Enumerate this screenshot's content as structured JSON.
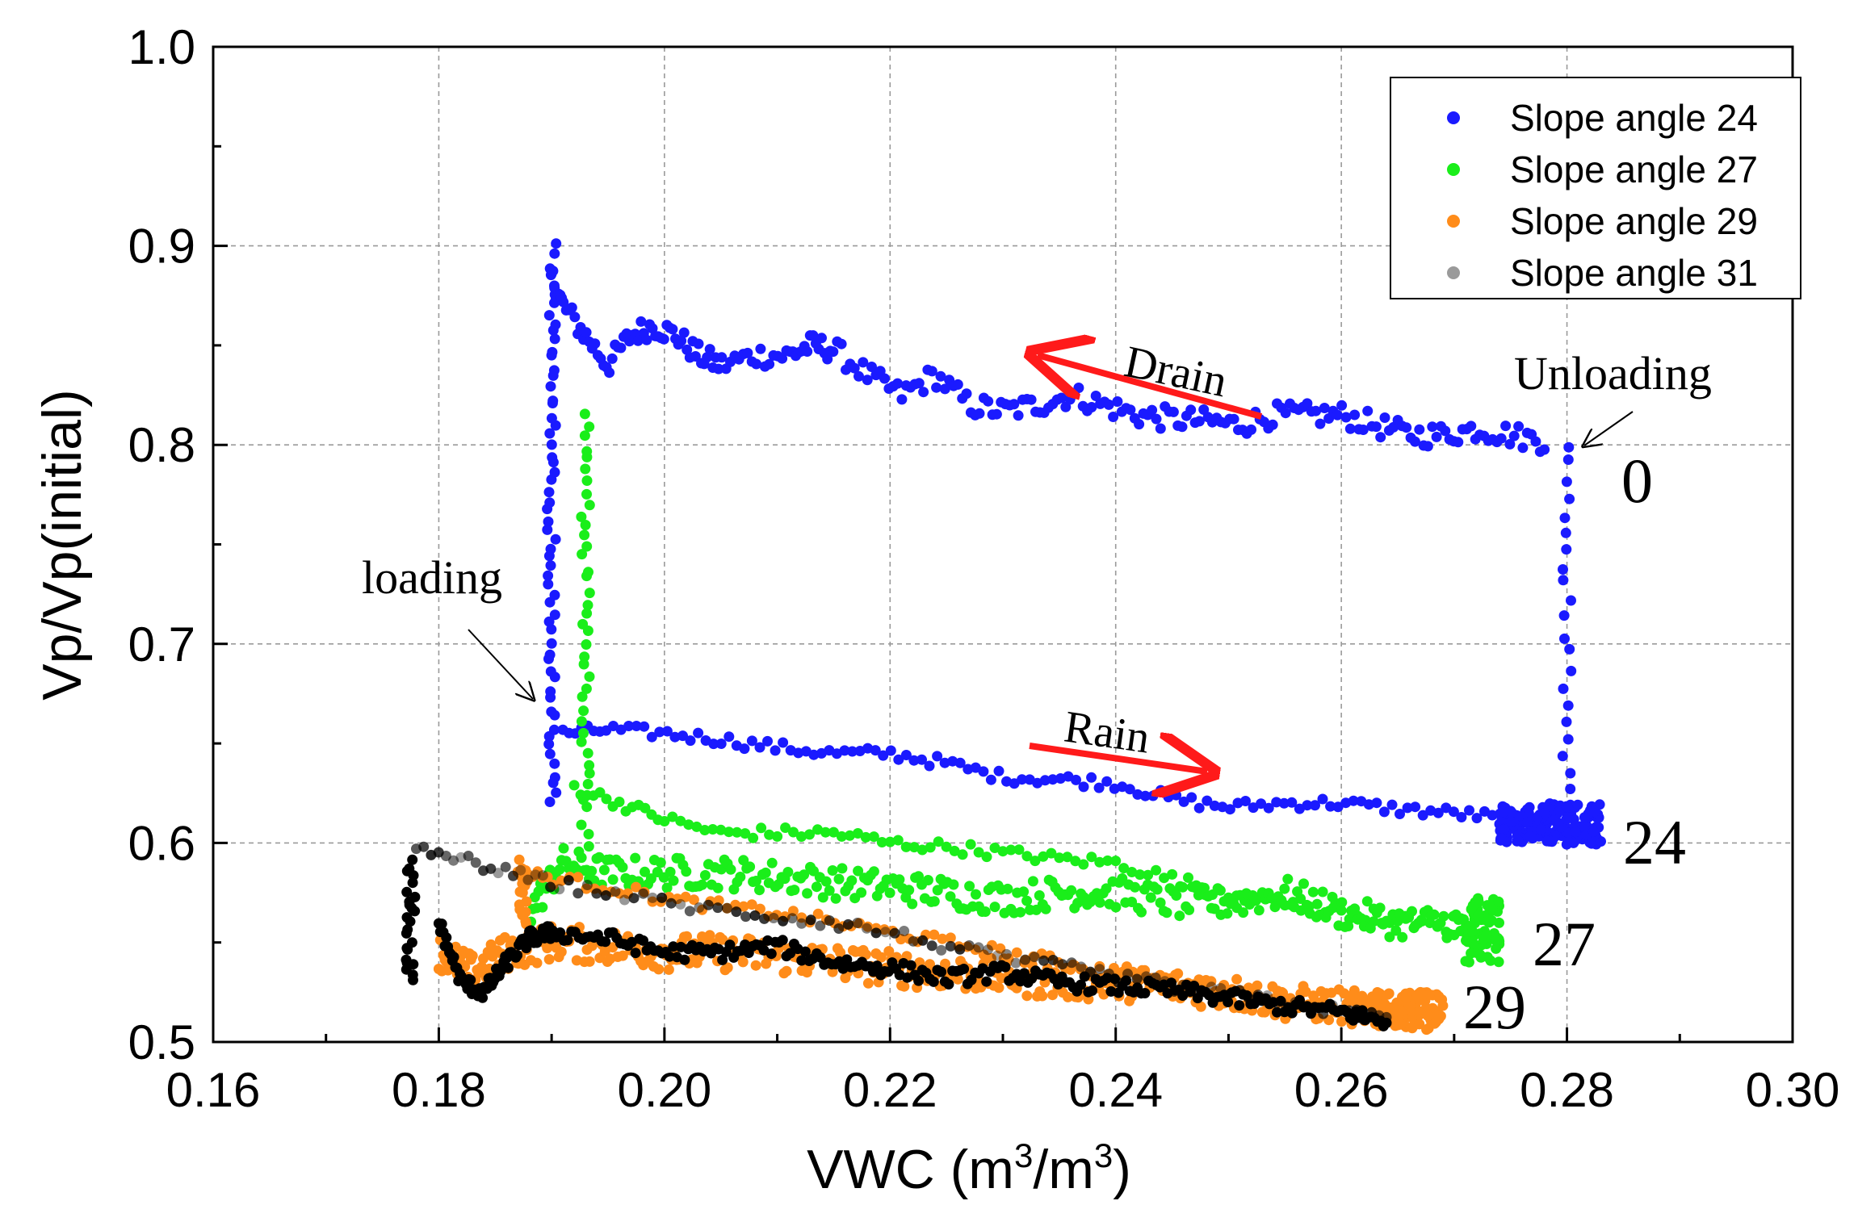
{
  "chart_data": {
    "type": "scatter",
    "title": "",
    "xlabel": "VWC (m",
    "xlabel_sup1": "3",
    "xlabel_mid": "/m",
    "xlabel_sup2": "3",
    "xlabel_end": ")",
    "ylabel": "Vp/Vp(initial)",
    "xlim": [
      0.16,
      0.3
    ],
    "ylim": [
      0.5,
      1.0
    ],
    "x_ticks": [
      "0.16",
      "0.18",
      "0.20",
      "0.22",
      "0.24",
      "0.26",
      "0.28",
      "0.30"
    ],
    "y_ticks": [
      "0.5",
      "0.6",
      "0.7",
      "0.8",
      "0.9",
      "1.0"
    ],
    "grid": true,
    "legend_position": "top-right",
    "series": [
      {
        "name": "Slope angle 24",
        "color": "#1a1aff",
        "segments": [
          {
            "role": "loading",
            "x": [
              0.19,
              0.19
            ],
            "y": [
              0.62,
              0.9
            ],
            "n": 60
          },
          {
            "role": "drain",
            "x": [
              0.19,
              0.191,
              0.193,
              0.195,
              0.197,
              0.199,
              0.201,
              0.203,
              0.205,
              0.208,
              0.211,
              0.213,
              0.215,
              0.218,
              0.221,
              0.224,
              0.227,
              0.23,
              0.233,
              0.236,
              0.239,
              0.242,
              0.245,
              0.248,
              0.251,
              0.254,
              0.257,
              0.26,
              0.263,
              0.266,
              0.269,
              0.272,
              0.275,
              0.278
            ],
            "y": [
              0.885,
              0.87,
              0.855,
              0.84,
              0.855,
              0.86,
              0.855,
              0.845,
              0.84,
              0.845,
              0.845,
              0.85,
              0.848,
              0.835,
              0.825,
              0.835,
              0.82,
              0.817,
              0.82,
              0.825,
              0.82,
              0.815,
              0.813,
              0.812,
              0.81,
              0.815,
              0.815,
              0.815,
              0.81,
              0.805,
              0.805,
              0.808,
              0.805,
              0.802
            ],
            "jitter": 0.006,
            "n": 260
          },
          {
            "role": "unloading",
            "x": [
              0.28,
              0.28
            ],
            "y": [
              0.8,
              0.6
            ],
            "n": 24
          },
          {
            "role": "rain",
            "x": [
              0.191,
              0.195,
              0.2,
              0.205,
              0.21,
              0.215,
              0.22,
              0.225,
              0.23,
              0.235,
              0.24,
              0.245,
              0.25,
              0.255,
              0.26,
              0.265,
              0.27,
              0.275,
              0.28,
              0.283
            ],
            "y": [
              0.655,
              0.657,
              0.655,
              0.652,
              0.648,
              0.645,
              0.645,
              0.64,
              0.633,
              0.632,
              0.63,
              0.622,
              0.618,
              0.62,
              0.62,
              0.617,
              0.615,
              0.612,
              0.605,
              0.6
            ],
            "jitter": 0.003,
            "n": 140
          },
          {
            "role": "tail",
            "x": [
              0.274,
              0.283
            ],
            "y": [
              0.6,
              0.62
            ],
            "jitter": 0.012,
            "n": 160
          }
        ]
      },
      {
        "name": "Slope angle 27",
        "color": "#1aee1a",
        "segments": [
          {
            "role": "loading",
            "x": [
              0.193,
              0.193
            ],
            "y": [
              0.6,
              0.815
            ],
            "n": 40
          },
          {
            "role": "upper",
            "x": [
              0.192,
              0.196,
              0.2,
              0.205,
              0.21,
              0.215,
              0.22,
              0.225,
              0.23,
              0.235,
              0.24,
              0.245,
              0.25,
              0.255,
              0.26,
              0.265,
              0.27,
              0.274
            ],
            "y": [
              0.628,
              0.62,
              0.612,
              0.605,
              0.605,
              0.605,
              0.6,
              0.598,
              0.595,
              0.592,
              0.59,
              0.582,
              0.575,
              0.57,
              0.565,
              0.56,
              0.555,
              0.55
            ],
            "jitter": 0.003,
            "n": 120
          },
          {
            "role": "lower",
            "x": [
              0.188,
              0.191,
              0.195,
              0.2,
              0.205,
              0.21,
              0.215,
              0.22,
              0.225,
              0.23,
              0.235,
              0.24,
              0.245,
              0.25,
              0.255,
              0.26,
              0.265,
              0.27,
              0.274
            ],
            "y": [
              0.565,
              0.59,
              0.585,
              0.585,
              0.585,
              0.583,
              0.58,
              0.578,
              0.575,
              0.572,
              0.575,
              0.575,
              0.57,
              0.57,
              0.575,
              0.565,
              0.56,
              0.56,
              0.555
            ],
            "jitter": 0.008,
            "n": 320
          },
          {
            "role": "tail",
            "x": [
              0.271,
              0.274
            ],
            "y": [
              0.54,
              0.575
            ],
            "jitter": 0.01,
            "n": 60
          }
        ]
      },
      {
        "name": "Slope angle 29",
        "color": "#ff8c1a",
        "segments": [
          {
            "role": "start",
            "x": [
              0.1875,
              0.1875
            ],
            "y": [
              0.56,
              0.59
            ],
            "n": 16
          },
          {
            "role": "upper",
            "x": [
              0.187,
              0.19,
              0.195,
              0.2,
              0.205,
              0.21,
              0.215,
              0.22,
              0.225,
              0.23,
              0.235,
              0.24,
              0.245,
              0.25,
              0.255,
              0.26,
              0.265
            ],
            "y": [
              0.585,
              0.582,
              0.578,
              0.572,
              0.568,
              0.565,
              0.56,
              0.555,
              0.55,
              0.545,
              0.54,
              0.535,
              0.53,
              0.527,
              0.522,
              0.518,
              0.515
            ],
            "jitter": 0.003,
            "n": 110
          },
          {
            "role": "lower",
            "x": [
              0.18,
              0.183,
              0.186,
              0.19,
              0.195,
              0.2,
              0.205,
              0.21,
              0.215,
              0.22,
              0.225,
              0.23,
              0.235,
              0.24,
              0.245,
              0.25,
              0.255,
              0.26,
              0.265,
              0.269
            ],
            "y": [
              0.545,
              0.535,
              0.545,
              0.55,
              0.548,
              0.545,
              0.545,
              0.543,
              0.54,
              0.537,
              0.535,
              0.533,
              0.53,
              0.53,
              0.528,
              0.525,
              0.52,
              0.518,
              0.515,
              0.515
            ],
            "jitter": 0.009,
            "n": 420
          },
          {
            "role": "tail",
            "x": [
              0.263,
              0.269
            ],
            "y": [
              0.508,
              0.525
            ],
            "jitter": 0.006,
            "n": 80
          }
        ]
      },
      {
        "name": "Slope angle 31",
        "color": "#000000",
        "segments": [
          {
            "role": "start",
            "x": [
              0.1775,
              0.1775
            ],
            "y": [
              0.53,
              0.59
            ],
            "n": 24
          },
          {
            "role": "upper",
            "x": [
              0.178,
              0.182,
              0.186,
              0.19,
              0.195,
              0.2,
              0.205,
              0.21,
              0.215,
              0.22,
              0.225,
              0.23,
              0.235,
              0.24,
              0.245,
              0.25,
              0.255,
              0.26,
              0.264
            ],
            "y": [
              0.596,
              0.592,
              0.585,
              0.58,
              0.575,
              0.57,
              0.566,
              0.563,
              0.56,
              0.555,
              0.548,
              0.542,
              0.538,
              0.533,
              0.528,
              0.524,
              0.52,
              0.515,
              0.512
            ],
            "jitter": 0.003,
            "n": 110
          },
          {
            "role": "lower",
            "x": [
              0.18,
              0.182,
              0.184,
              0.186,
              0.188,
              0.19,
              0.195,
              0.2,
              0.205,
              0.21,
              0.215,
              0.22,
              0.225,
              0.23,
              0.235,
              0.24,
              0.245,
              0.25,
              0.255,
              0.26,
              0.264
            ],
            "y": [
              0.56,
              0.53,
              0.525,
              0.54,
              0.552,
              0.555,
              0.552,
              0.545,
              0.545,
              0.548,
              0.54,
              0.537,
              0.532,
              0.535,
              0.53,
              0.528,
              0.526,
              0.522,
              0.518,
              0.515,
              0.51
            ],
            "jitter": 0.004,
            "n": 300
          }
        ]
      }
    ],
    "annotations": {
      "drain": "Drain",
      "rain": "Rain",
      "unloading": "Unloading",
      "loading": "loading",
      "label_0": "0",
      "label_24": "24",
      "label_27": "27",
      "label_29": "29",
      "arrow_color": "#ff1a1a"
    }
  }
}
